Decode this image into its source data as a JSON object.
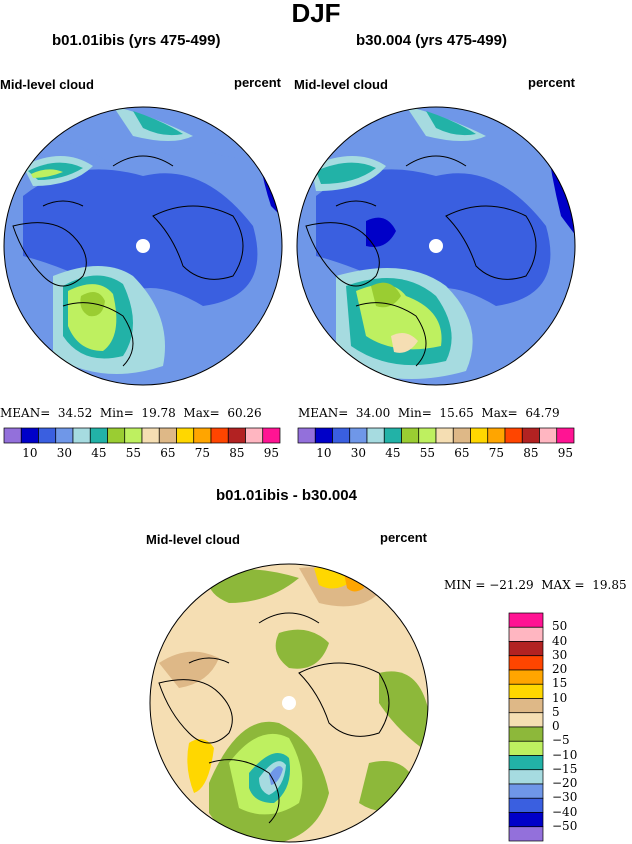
{
  "figure": {
    "title": "DJF"
  },
  "panels": [
    {
      "name": "b01.01ibis (yrs 475-499)",
      "variable": "Mid-level cloud",
      "units": "percent",
      "mean": "MEAN=  34.52",
      "min": "Min=  19.78",
      "max": "Max=  60.26"
    },
    {
      "name": "b30.004 (yrs 475-499)",
      "variable": "Mid-level cloud",
      "units": "percent",
      "mean": "MEAN=  34.00",
      "min": "Min=  15.65",
      "max": "Max=  64.79"
    }
  ],
  "diff_panel": {
    "name": "b01.01ibis - b30.004",
    "variable": "Mid-level cloud",
    "units": "percent",
    "minmax": "MIN = −21.29  MAX =  19.85"
  },
  "colorbar_abs": {
    "colors": [
      "#9370db",
      "#0000c8",
      "#3a5fe0",
      "#6f97e8",
      "#a6dbe0",
      "#22b2a7",
      "#9acd32",
      "#bef060",
      "#f5deb3",
      "#deb887",
      "#ffd700",
      "#ffa500",
      "#ff4500",
      "#b22222",
      "#ffb6c1",
      "#ff1493"
    ],
    "tick_labels": [
      "10",
      "30",
      "45",
      "55",
      "65",
      "75",
      "85",
      "95"
    ]
  },
  "colorbar_diff": {
    "colors": [
      "#ff1493",
      "#ffb6c1",
      "#b22222",
      "#ff4500",
      "#ffa500",
      "#ffd700",
      "#deb887",
      "#f5deb3",
      "#8db83a",
      "#bef060",
      "#22b2a7",
      "#a6dbe0",
      "#6f97e8",
      "#3a5fe0",
      "#0000c8",
      "#9370db"
    ],
    "tick_labels": [
      "50",
      "40",
      "30",
      "20",
      "15",
      "10",
      "5",
      "0",
      "−5",
      "−10",
      "−15",
      "−20",
      "−30",
      "−40",
      "−50"
    ]
  }
}
